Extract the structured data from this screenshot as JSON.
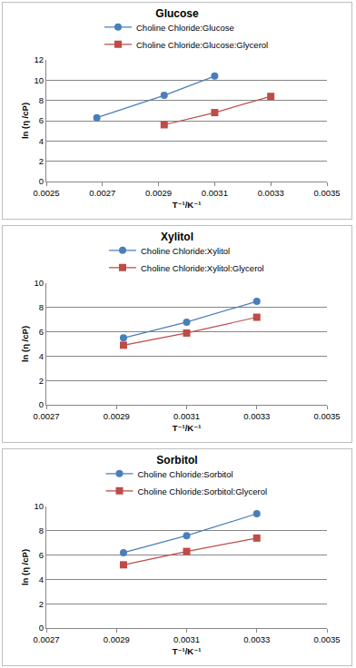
{
  "chart_data": [
    {
      "type": "line",
      "title": "Glucose",
      "x_label": "T⁻¹/K⁻¹",
      "y_label": "ln (η /cP)",
      "x": [
        0.00268,
        0.00292,
        0.0031,
        0.0033
      ],
      "series": [
        {
          "name": "Choline Chloride:Glucose",
          "color": "#4a7ebb",
          "marker": "circle",
          "line_style": "solid",
          "values": [
            6.3,
            8.5,
            10.4,
            null
          ]
        },
        {
          "name": "Choline Chloride:Glucose:Glycerol",
          "color": "#be4b48",
          "marker": "square",
          "line_style": "solid",
          "values": [
            null,
            5.6,
            6.8,
            8.4
          ]
        }
      ],
      "xlim": [
        0.0025,
        0.0035
      ],
      "xticks": [
        0.0025,
        0.0027,
        0.0029,
        0.0031,
        0.0033,
        0.0035
      ],
      "ylim": [
        0,
        12
      ],
      "yticks": [
        0,
        2,
        4,
        6,
        8,
        10,
        12
      ],
      "grid": true,
      "legend": "top"
    },
    {
      "type": "line",
      "title": "Xylitol",
      "x_label": "T⁻¹/K⁻¹",
      "y_label": "ln (η /cP)",
      "x": [
        0.00292,
        0.0031,
        0.0033
      ],
      "series": [
        {
          "name": "Choline Chloride:Xylitol",
          "color": "#4a7ebb",
          "marker": "circle",
          "line_style": "solid",
          "values": [
            5.5,
            6.8,
            8.5
          ]
        },
        {
          "name": "Choline Chloride:Xylitol:Glycerol",
          "color": "#be4b48",
          "marker": "square",
          "line_style": "solid",
          "values": [
            4.9,
            5.9,
            7.2
          ]
        }
      ],
      "xlim": [
        0.0027,
        0.0035
      ],
      "xticks": [
        0.0027,
        0.0029,
        0.0031,
        0.0033,
        0.0035
      ],
      "ylim": [
        0,
        10
      ],
      "yticks": [
        0,
        2,
        4,
        6,
        8,
        10
      ],
      "grid": true,
      "legend": "top"
    },
    {
      "type": "line",
      "title": "Sorbitol",
      "x_label": "T⁻¹/K⁻¹",
      "y_label": "ln (η /cP)",
      "x": [
        0.00292,
        0.0031,
        0.0033
      ],
      "series": [
        {
          "name": "Choline Chloride:Sorbitol",
          "color": "#4a7ebb",
          "marker": "circle",
          "line_style": "solid",
          "values": [
            6.2,
            7.6,
            9.4
          ]
        },
        {
          "name": "Choline Chloride:Sorbitol:Glycerol",
          "color": "#be4b48",
          "marker": "square",
          "line_style": "solid",
          "values": [
            5.2,
            6.3,
            7.4
          ]
        }
      ],
      "xlim": [
        0.0027,
        0.0035
      ],
      "xticks": [
        0.0027,
        0.0029,
        0.0031,
        0.0033,
        0.0035
      ],
      "ylim": [
        0,
        10
      ],
      "yticks": [
        0,
        2,
        4,
        6,
        8,
        10
      ],
      "grid": true,
      "legend": "top"
    }
  ]
}
